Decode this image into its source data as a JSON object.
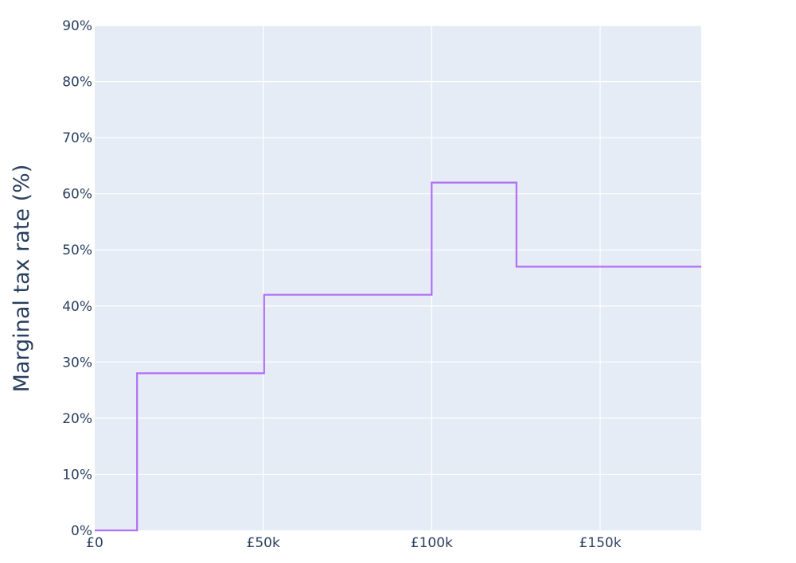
{
  "chart_data": {
    "type": "line",
    "line_shape": "step",
    "ylabel": "Marginal tax rate (%)",
    "xlabel": "",
    "xlim": [
      0,
      180000
    ],
    "ylim": [
      0,
      90
    ],
    "x_ticks": [
      0,
      50000,
      100000,
      150000
    ],
    "x_tick_labels": [
      "£0",
      "£50k",
      "£100k",
      "£150k"
    ],
    "y_ticks": [
      0,
      10,
      20,
      30,
      40,
      50,
      60,
      70,
      80,
      90
    ],
    "y_tick_labels": [
      "0%",
      "10%",
      "20%",
      "30%",
      "40%",
      "50%",
      "60%",
      "70%",
      "80%",
      "90%"
    ],
    "grid": true,
    "legend": "none",
    "colors": {
      "plot_bg": "#e5ecf6",
      "grid": "#ffffff",
      "line": "#b26ef5",
      "text": "#2a3f5f"
    },
    "series": [
      {
        "x": [
          0,
          12570,
          12570,
          50270,
          50270,
          100000,
          100000,
          125140,
          125140,
          180000
        ],
        "y": [
          0,
          0,
          28,
          28,
          42,
          42,
          62,
          62,
          47,
          47
        ]
      }
    ]
  }
}
